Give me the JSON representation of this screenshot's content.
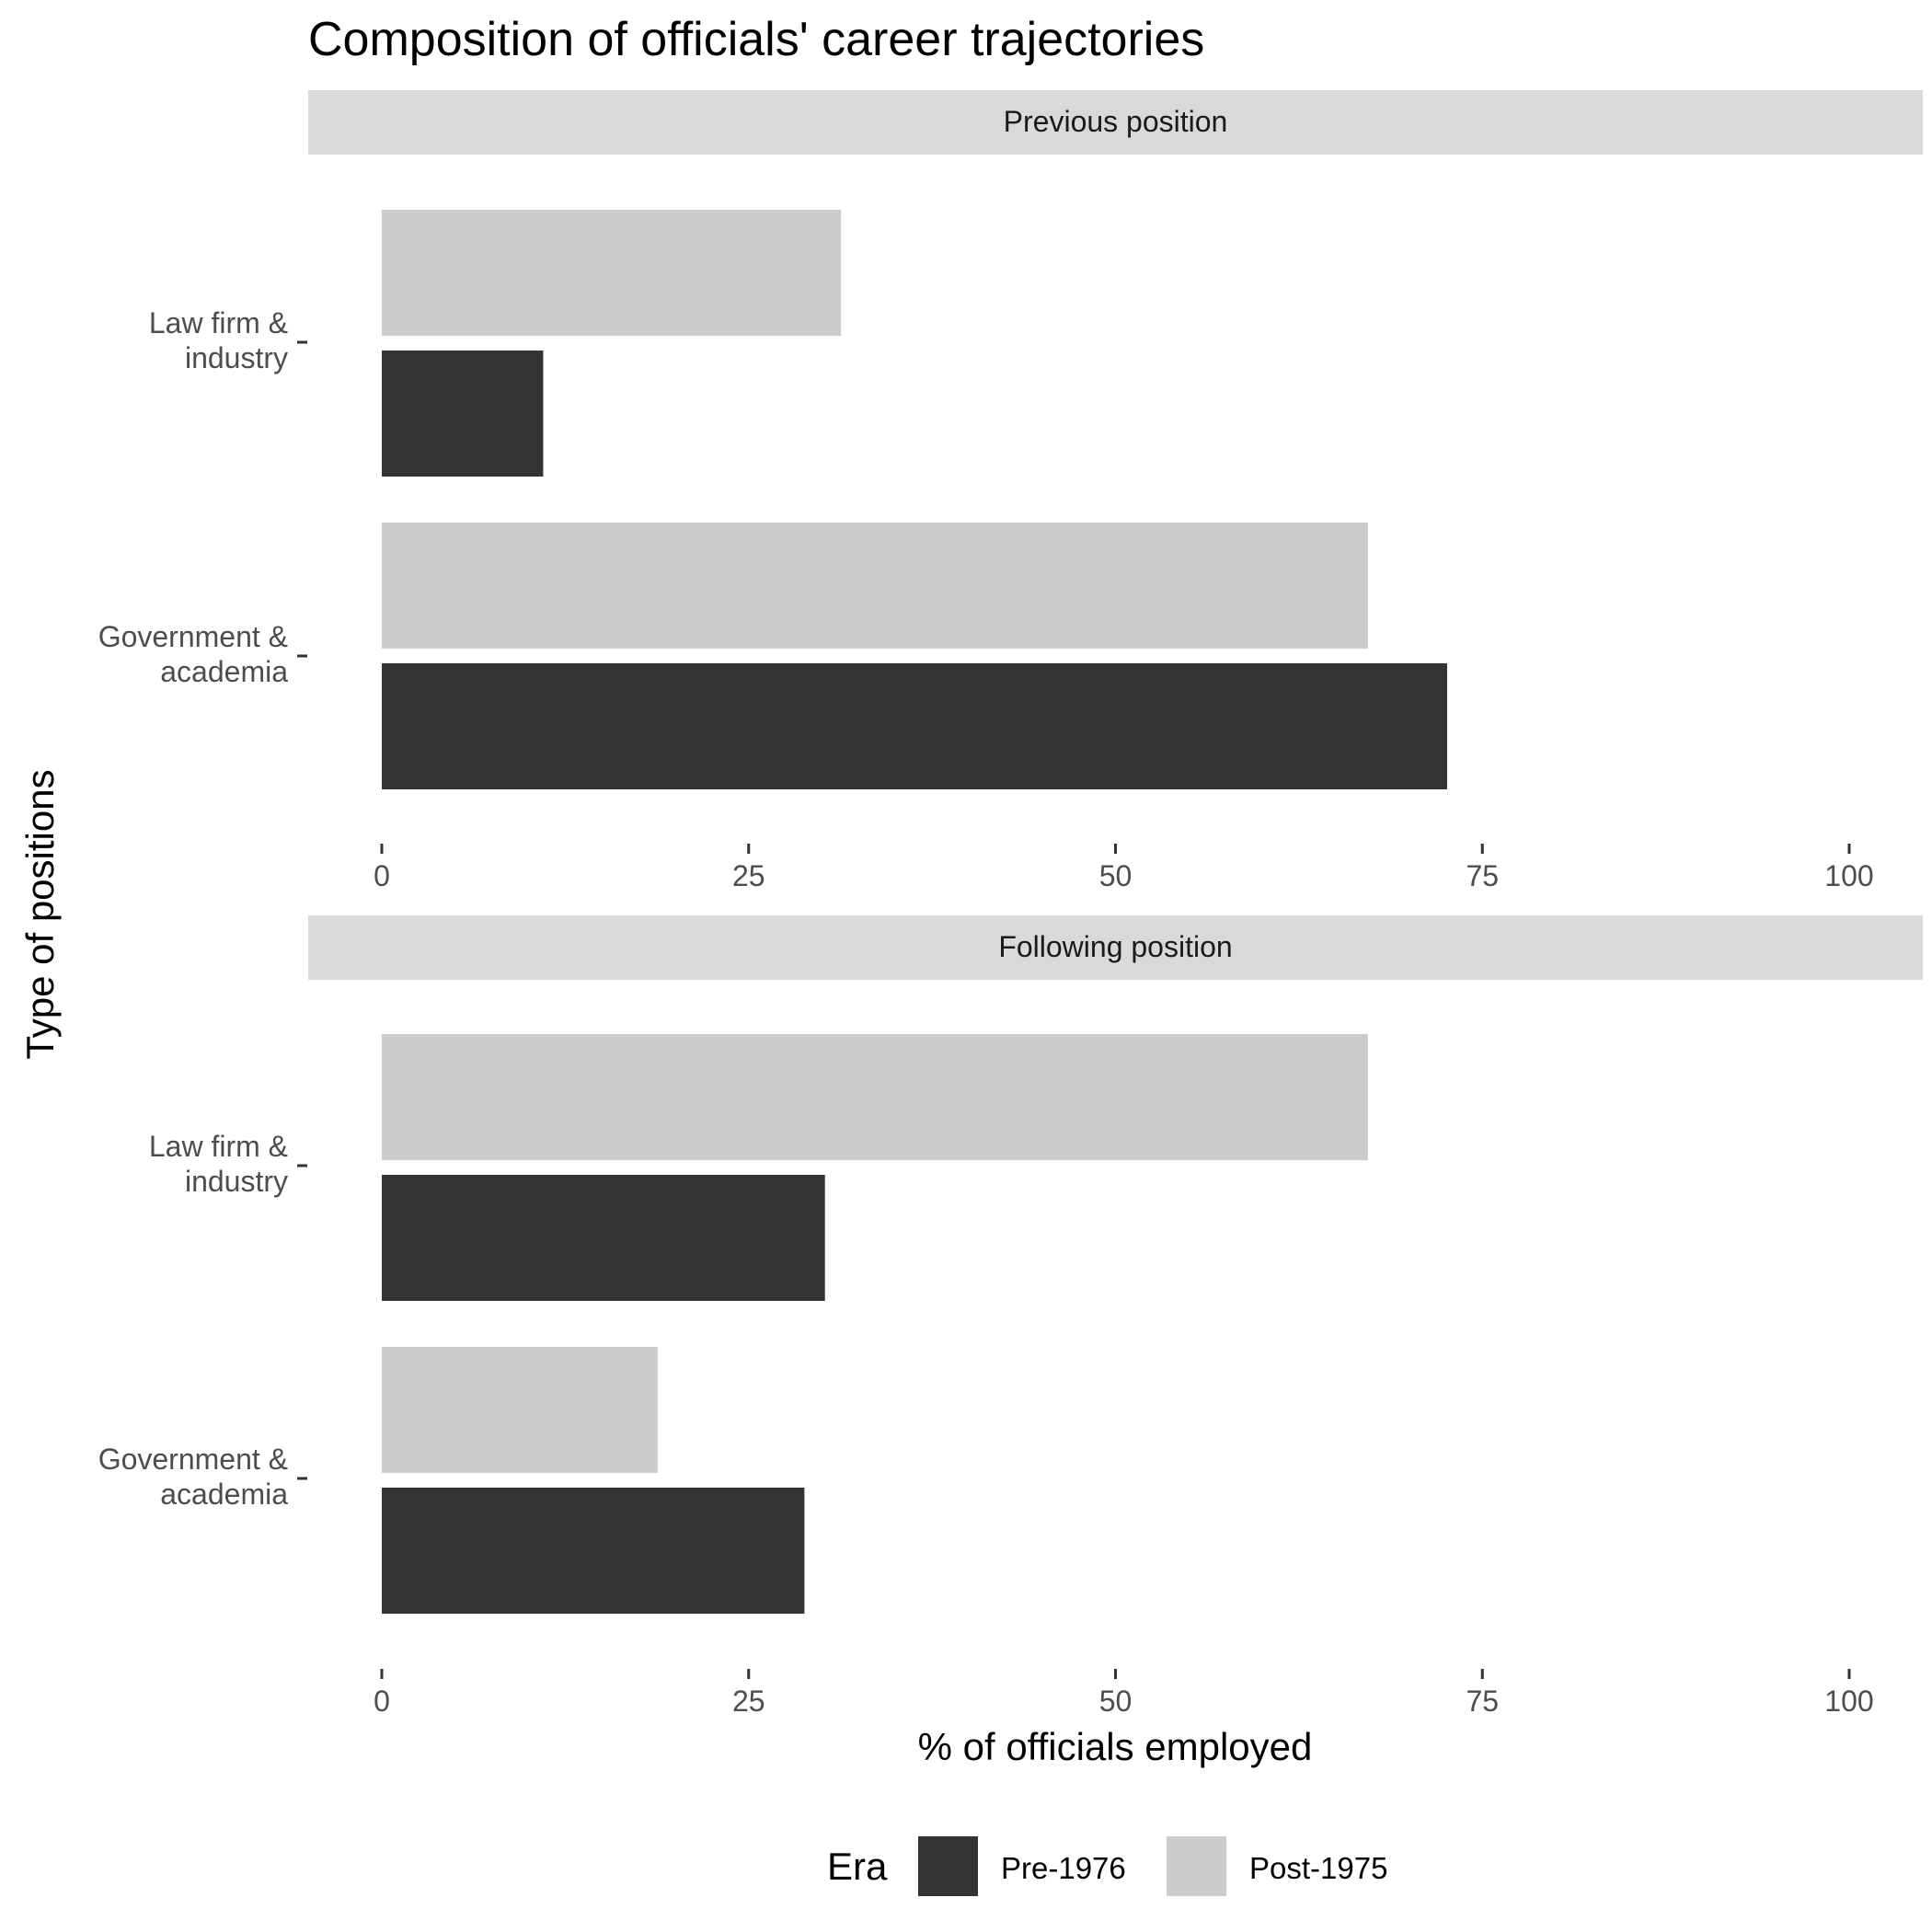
{
  "chart_data": {
    "type": "bar",
    "orientation": "horizontal",
    "title": "Composition of officials' career trajectories",
    "xlabel": "% of officials employed",
    "ylabel": "Type of positions",
    "xlim": [
      0,
      100
    ],
    "xticks": [
      0,
      25,
      50,
      75,
      100
    ],
    "grid": false,
    "legend": {
      "title": "Era",
      "position": "bottom",
      "entries": [
        {
          "name": "Pre-1976",
          "color": "#333333"
        },
        {
          "name": "Post-1975",
          "color": "#cccccc"
        }
      ]
    },
    "categories": [
      {
        "lines": [
          "Law firm &",
          "industry"
        ]
      },
      {
        "lines": [
          "Government &",
          "academia"
        ]
      }
    ],
    "panels": [
      {
        "label": "Previous position",
        "series": [
          {
            "name": "Post-1975",
            "values": [
              31.3,
              67.2
            ]
          },
          {
            "name": "Pre-1976",
            "values": [
              11.0,
              72.6
            ]
          }
        ]
      },
      {
        "label": "Following position",
        "series": [
          {
            "name": "Post-1975",
            "values": [
              67.2,
              18.8
            ]
          },
          {
            "name": "Pre-1976",
            "values": [
              30.2,
              28.8
            ]
          }
        ]
      }
    ],
    "colors": {
      "strip_background": "#d9d9d9",
      "tick_color": "#333333"
    }
  }
}
